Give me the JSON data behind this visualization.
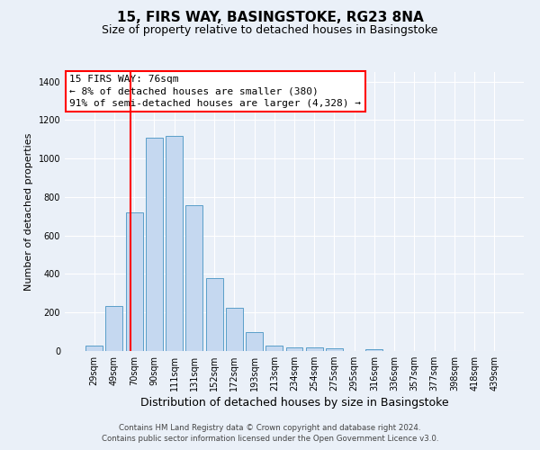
{
  "title": "15, FIRS WAY, BASINGSTOKE, RG23 8NA",
  "subtitle": "Size of property relative to detached houses in Basingstoke",
  "xlabel": "Distribution of detached houses by size in Basingstoke",
  "ylabel": "Number of detached properties",
  "categories": [
    "29sqm",
    "49sqm",
    "70sqm",
    "90sqm",
    "111sqm",
    "131sqm",
    "152sqm",
    "172sqm",
    "193sqm",
    "213sqm",
    "234sqm",
    "254sqm",
    "275sqm",
    "295sqm",
    "316sqm",
    "336sqm",
    "357sqm",
    "377sqm",
    "398sqm",
    "418sqm",
    "439sqm"
  ],
  "values": [
    30,
    235,
    720,
    1110,
    1120,
    760,
    380,
    225,
    100,
    30,
    20,
    18,
    15,
    0,
    10,
    0,
    0,
    0,
    0,
    0,
    0
  ],
  "bar_color": "#c5d8f0",
  "bar_edge_color": "#5a9ec9",
  "annotation_text": "15 FIRS WAY: 76sqm\n← 8% of detached houses are smaller (380)\n91% of semi-detached houses are larger (4,328) →",
  "ylim": [
    0,
    1450
  ],
  "yticks": [
    0,
    200,
    400,
    600,
    800,
    1000,
    1200,
    1400
  ],
  "background_color": "#eaf0f8",
  "plot_background": "#eaf0f8",
  "grid_color": "#ffffff",
  "footer1": "Contains HM Land Registry data © Crown copyright and database right 2024.",
  "footer2": "Contains public sector information licensed under the Open Government Licence v3.0.",
  "title_fontsize": 11,
  "subtitle_fontsize": 9,
  "annotation_fontsize": 8,
  "tick_fontsize": 7,
  "ylabel_fontsize": 8,
  "xlabel_fontsize": 9
}
